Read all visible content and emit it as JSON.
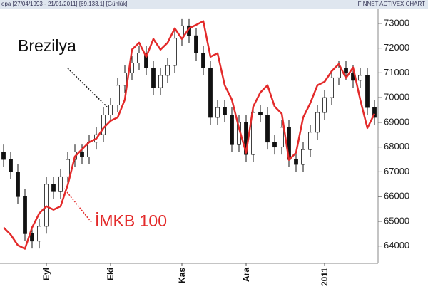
{
  "chart_data": {
    "type": "candlestick",
    "header_left": "opa [27/04/1993 - 21/01/2011] [69.133,1] [Günlük]",
    "header_right": "FINNET ACTIVEX CHART",
    "categories": [
      null,
      null,
      null,
      null,
      null,
      null,
      "Eyl",
      null,
      null,
      null,
      null,
      null,
      null,
      null,
      null,
      "Eki",
      null,
      null,
      null,
      null,
      null,
      null,
      null,
      null,
      null,
      "Kas",
      null,
      null,
      null,
      null,
      null,
      null,
      null,
      null,
      "Ara",
      null,
      null,
      null,
      null,
      null,
      null,
      null,
      null,
      null,
      null,
      "2011",
      null,
      null,
      null,
      null,
      null,
      null,
      null
    ],
    "series": [
      {
        "name": "Brezilya",
        "color": "#111111",
        "open": [
          67800,
          67500,
          67000,
          66000,
          64500,
          64200,
          64800,
          66500,
          66200,
          66800,
          67500,
          67800,
          67600,
          68200,
          68500,
          69300,
          69700,
          70500,
          71000,
          71400,
          71800,
          71200,
          70400,
          70900,
          71300,
          72400,
          72900,
          72500,
          71800,
          71200,
          69200,
          69600,
          69300,
          68100,
          69000,
          67700,
          69400,
          69300,
          68200,
          68000,
          68800,
          67500,
          67300,
          67900,
          68600,
          69400,
          70000,
          70800,
          71200,
          71000,
          70700,
          70900,
          69600
        ],
        "high": [
          68100,
          67800,
          67300,
          66300,
          64800,
          65100,
          66800,
          66800,
          67100,
          67800,
          68100,
          68100,
          68500,
          68800,
          69600,
          70000,
          70800,
          71300,
          71700,
          72100,
          72100,
          71500,
          71200,
          71600,
          72700,
          73200,
          73200,
          72800,
          72100,
          71500,
          69900,
          69900,
          69600,
          69300,
          69300,
          69700,
          69700,
          69600,
          68500,
          69100,
          69100,
          67800,
          68200,
          68900,
          69700,
          70300,
          71100,
          71500,
          71500,
          71300,
          71200,
          71200,
          69900
        ],
        "low": [
          67200,
          66700,
          65700,
          64200,
          63900,
          63900,
          64500,
          65900,
          65900,
          66500,
          67200,
          67300,
          67300,
          67900,
          68200,
          69000,
          69400,
          70200,
          70700,
          71100,
          70900,
          70100,
          70100,
          70600,
          71000,
          72100,
          72200,
          71500,
          70900,
          68900,
          68900,
          69000,
          67800,
          67800,
          67400,
          67400,
          69000,
          67900,
          67700,
          67700,
          67200,
          67000,
          67000,
          67600,
          68300,
          69100,
          69700,
          70500,
          70700,
          70400,
          70400,
          69300,
          68900
        ],
        "close": [
          67500,
          67000,
          66000,
          64500,
          64200,
          64800,
          66500,
          66200,
          66800,
          67500,
          67800,
          67600,
          68200,
          68500,
          69300,
          69700,
          70500,
          71000,
          71400,
          71800,
          71200,
          70400,
          70900,
          71300,
          72400,
          72900,
          72500,
          71800,
          71200,
          69200,
          69600,
          69300,
          68100,
          69000,
          67700,
          69400,
          69300,
          68200,
          68000,
          68800,
          67500,
          67300,
          67900,
          68600,
          69400,
          70000,
          70800,
          71200,
          71000,
          70700,
          70900,
          69600,
          69200
        ]
      },
      {
        "name": "İMKB 100",
        "color": "#e32a2a",
        "type": "line",
        "values": [
          64750,
          64460,
          64030,
          63890,
          64750,
          65320,
          65610,
          65470,
          65610,
          66470,
          67620,
          67910,
          68200,
          68340,
          68770,
          69060,
          69200,
          69920,
          71940,
          72220,
          71650,
          72370,
          71940,
          72220,
          72800,
          72370,
          72800,
          72940,
          73090,
          71650,
          71790,
          70500,
          69920,
          68770,
          67770,
          69640,
          70210,
          70500,
          69640,
          69350,
          67480,
          67770,
          69200,
          69780,
          70500,
          70640,
          71070,
          71360,
          70790,
          71220,
          69920,
          68770,
          69350
        ]
      }
    ],
    "ylim": [
      63300,
      73600
    ],
    "yticks": [
      64000,
      65000,
      66000,
      67000,
      68000,
      69000,
      70000,
      71000,
      72000,
      73000
    ]
  }
}
